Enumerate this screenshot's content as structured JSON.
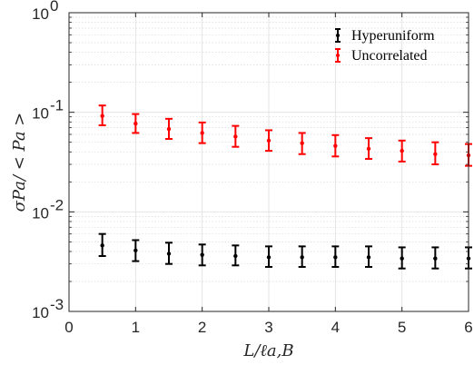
{
  "chart_data": {
    "type": "scatter",
    "xlabel": "L/ℓa,B",
    "ylabel": "σPa/ < Pa >",
    "xlim": [
      0,
      6
    ],
    "ylim": [
      0.001,
      1
    ],
    "yscale": "log",
    "grid": true,
    "legend_position": "top-right",
    "x_ticks": [
      "0",
      "1",
      "2",
      "3",
      "4",
      "5",
      "6"
    ],
    "y_ticks": [
      {
        "base": "10",
        "exp": "0",
        "value": 1
      },
      {
        "base": "10",
        "exp": "-1",
        "value": 0.1
      },
      {
        "base": "10",
        "exp": "-2",
        "value": 0.01
      },
      {
        "base": "10",
        "exp": "-3",
        "value": 0.001
      }
    ],
    "series": [
      {
        "name": "Hyperuniform",
        "color": "#000000",
        "x": [
          0.5,
          1.0,
          1.5,
          2.0,
          2.5,
          3.0,
          3.5,
          4.0,
          4.5,
          5.0,
          5.5,
          6.0
        ],
        "y": [
          0.0046,
          0.0041,
          0.0038,
          0.0037,
          0.0036,
          0.0035,
          0.0035,
          0.0035,
          0.0035,
          0.0034,
          0.0034,
          0.0034
        ],
        "y_low": [
          0.0036,
          0.0032,
          0.003,
          0.0029,
          0.0029,
          0.0028,
          0.0028,
          0.0028,
          0.0028,
          0.0027,
          0.0027,
          0.0027
        ],
        "y_high": [
          0.006,
          0.0052,
          0.0049,
          0.0047,
          0.0046,
          0.0045,
          0.0045,
          0.0045,
          0.0045,
          0.0044,
          0.0044,
          0.0044
        ]
      },
      {
        "name": "Uncorrelated",
        "color": "#ff0000",
        "x": [
          0.5,
          1.0,
          1.5,
          2.0,
          2.5,
          3.0,
          3.5,
          4.0,
          4.5,
          5.0,
          5.5,
          6.0
        ],
        "y": [
          0.092,
          0.077,
          0.068,
          0.062,
          0.057,
          0.052,
          0.049,
          0.046,
          0.043,
          0.041,
          0.038,
          0.037
        ],
        "y_low": [
          0.074,
          0.062,
          0.054,
          0.049,
          0.045,
          0.041,
          0.038,
          0.036,
          0.034,
          0.032,
          0.03,
          0.029
        ],
        "y_high": [
          0.117,
          0.096,
          0.086,
          0.079,
          0.073,
          0.066,
          0.062,
          0.059,
          0.055,
          0.052,
          0.05,
          0.048
        ]
      }
    ]
  }
}
